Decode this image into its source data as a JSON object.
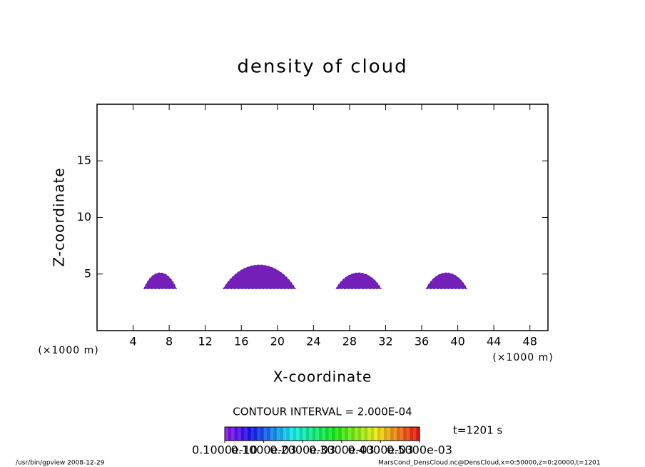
{
  "chart_data": {
    "type": "contour",
    "title": "density of cloud",
    "x_label": "X-coordinate",
    "y_label": "Z-coordinate",
    "x_unit": "(×1000 m)",
    "xlim": [
      0,
      50
    ],
    "xticks": [
      4,
      8,
      12,
      16,
      20,
      24,
      28,
      32,
      36,
      40,
      44,
      48
    ],
    "ylim": [
      0,
      20
    ],
    "yticks": [
      5,
      10,
      15
    ],
    "color": "#7420b8",
    "clouds": [
      {
        "x": [
          5.2,
          8.8
        ],
        "z": [
          3.7,
          5.1
        ],
        "value": 0.0001
      },
      {
        "x": [
          14,
          22
        ],
        "z": [
          3.7,
          5.8
        ],
        "value": 0.0001
      },
      {
        "x": [
          26.5,
          31.5
        ],
        "z": [
          3.7,
          5.1
        ],
        "value": 0.0001
      },
      {
        "x": [
          36.5,
          41
        ],
        "z": [
          3.7,
          5.1
        ],
        "value": 0.0001
      }
    ],
    "contour_interval": "CONTOUR INTERVAL = 2.000E-04",
    "time": "t=1201 s",
    "colorbar_lim": [
      0,
      0.0005
    ],
    "colorbar_ticks": [
      {
        "value": 1e-11,
        "label": "0.1000e-10"
      },
      {
        "value": 0.0001,
        "label": "0.1000e-03"
      },
      {
        "value": 0.0002,
        "label": "0.2000e-03"
      },
      {
        "value": 0.0003,
        "label": "0.3000e-03"
      },
      {
        "value": 0.0004,
        "label": "0.4000e-03"
      },
      {
        "value": 0.0005,
        "label": "0.5000e-03"
      }
    ],
    "footer_left": "/usr/bin/gpview  2008-12-29",
    "footer_right": "MarsCond_DensCloud.nc@DensCloud,x=0:50000,z=0:20000,t=1201"
  }
}
